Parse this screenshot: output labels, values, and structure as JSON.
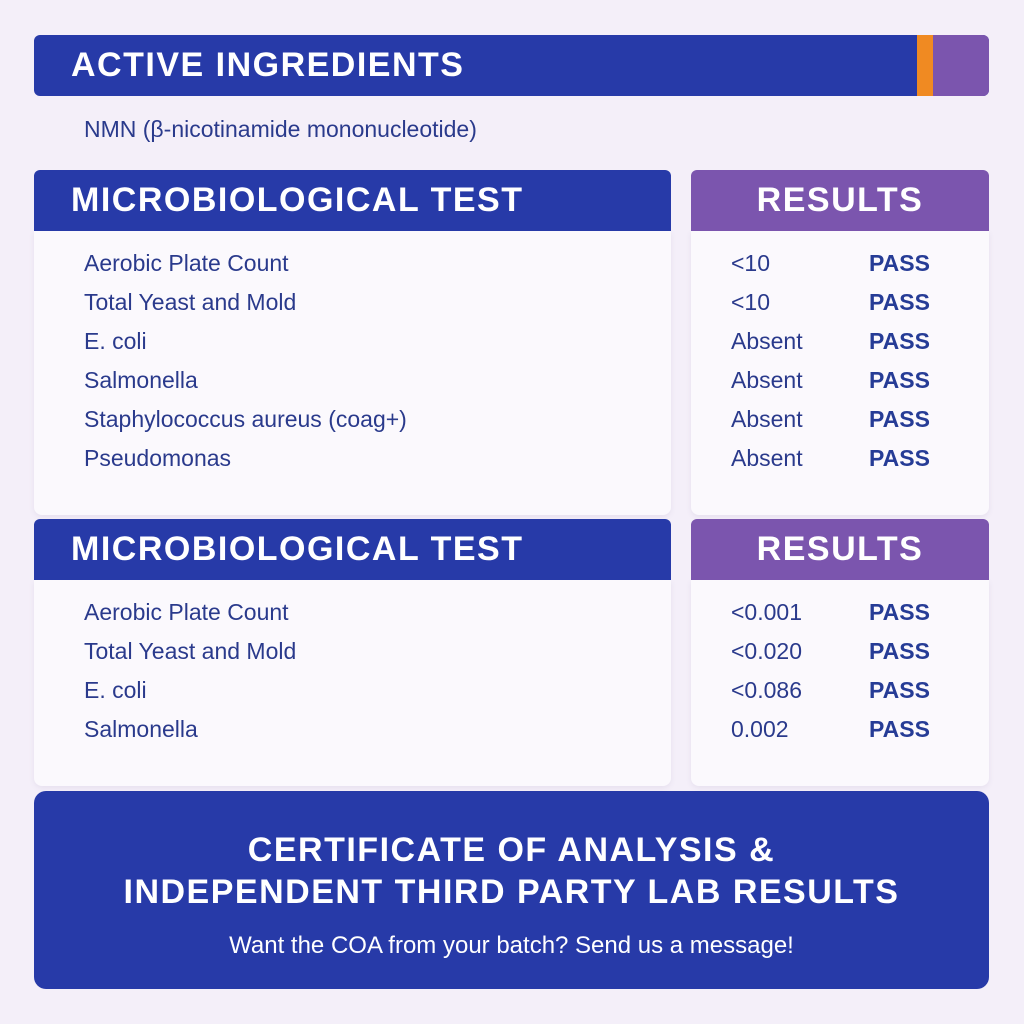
{
  "active_ingredients": {
    "title": "ACTIVE INGREDIENTS",
    "text": "NMN (β-nicotinamide mononucleotide)"
  },
  "sections": [
    {
      "header": "MICROBIOLOGICAL TEST",
      "results_header": "RESULTS",
      "rows": [
        [
          "Aerobic Plate Count",
          "<10",
          "PASS"
        ],
        [
          "Total Yeast and Mold",
          "<10",
          "PASS"
        ],
        [
          "E. coli",
          "Absent",
          "PASS"
        ],
        [
          "Salmonella",
          "Absent",
          "PASS"
        ],
        [
          "Staphylococcus aureus (coag+)",
          "Absent",
          "PASS"
        ],
        [
          "Pseudomonas",
          "Absent",
          "PASS"
        ]
      ]
    },
    {
      "header": "MICROBIOLOGICAL TEST",
      "results_header": "RESULTS",
      "rows": [
        [
          "Aerobic Plate Count",
          "<0.001",
          "PASS"
        ],
        [
          "Total Yeast and Mold",
          "<0.020",
          "PASS"
        ],
        [
          "E. coli",
          "<0.086",
          "PASS"
        ],
        [
          "Salmonella",
          "0.002",
          "PASS"
        ]
      ]
    }
  ],
  "footer": {
    "title_lines": [
      "CERTIFICATE OF ANALYSIS &",
      "INDEPENDENT THIRD PARTY LAB RESULTS"
    ],
    "subtitle": "Want the COA from your batch? Send us a message!"
  }
}
